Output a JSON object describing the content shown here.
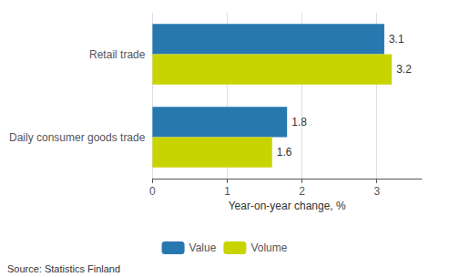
{
  "chart_data": {
    "type": "bar",
    "orientation": "horizontal",
    "categories": [
      "Retail trade",
      "Daily consumer goods trade"
    ],
    "series": [
      {
        "name": "Value",
        "color": "#2878b0",
        "values": [
          3.1,
          1.8
        ]
      },
      {
        "name": "Volume",
        "color": "#c8d400",
        "values": [
          3.2,
          1.6
        ]
      }
    ],
    "xlabel": "Year-on-year change, %",
    "xlim": [
      0,
      3.6
    ],
    "xticks": [
      0,
      1,
      2,
      3
    ],
    "grid": true,
    "legend": "bottom",
    "data_labels": true,
    "annotations": [
      "Source: Statistics Finland"
    ]
  }
}
